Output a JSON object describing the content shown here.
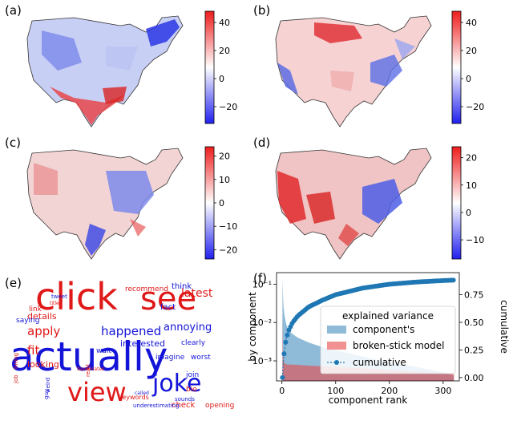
{
  "panels": {
    "a": {
      "label": "(a)",
      "colorbar_ticks": [
        "40",
        "20",
        "0",
        "−20"
      ]
    },
    "b": {
      "label": "(b)",
      "colorbar_ticks": [
        "40",
        "20",
        "0",
        "−20"
      ]
    },
    "c": {
      "label": "(c)",
      "colorbar_ticks": [
        "20",
        "10",
        "0",
        "−10",
        "−20"
      ]
    },
    "d": {
      "label": "(d)",
      "colorbar_ticks": [
        "20",
        "10",
        "0",
        "−10"
      ]
    },
    "e": {
      "label": "(e)"
    },
    "f": {
      "label": "(f)"
    }
  },
  "colors": {
    "pos": "#e8272a",
    "neg": "#2424e0",
    "blue_word": "#1414d8",
    "red_word": "#e01818",
    "series": "#1f77b4",
    "broken": "#e8474a"
  },
  "wordcloud": {
    "words": [
      {
        "text": "click",
        "color": "red",
        "size": 46
      },
      {
        "text": "see",
        "color": "red",
        "size": 40
      },
      {
        "text": "actually",
        "color": "blue",
        "size": 50
      },
      {
        "text": "view",
        "color": "red",
        "size": 32
      },
      {
        "text": "joke",
        "color": "blue",
        "size": 30
      },
      {
        "text": "happened",
        "color": "blue",
        "size": 15
      },
      {
        "text": "apply",
        "color": "red",
        "size": 15
      },
      {
        "text": "annoying",
        "color": "blue",
        "size": 13
      },
      {
        "text": "latest",
        "color": "red",
        "size": 14
      },
      {
        "text": "details",
        "color": "red",
        "size": 11
      },
      {
        "text": "fit",
        "color": "red",
        "size": 15
      },
      {
        "text": "looking",
        "color": "red",
        "size": 11
      },
      {
        "text": "interested",
        "color": "blue",
        "size": 11
      },
      {
        "text": "check",
        "color": "red",
        "size": 10
      },
      {
        "text": "opening",
        "color": "red",
        "size": 9
      },
      {
        "text": "recommend",
        "color": "red",
        "size": 9
      },
      {
        "text": "think",
        "color": "blue",
        "size": 10
      },
      {
        "text": "fact",
        "color": "blue",
        "size": 10
      },
      {
        "text": "join",
        "color": "blue",
        "size": 9
      },
      {
        "text": "bio",
        "color": "red",
        "size": 9
      },
      {
        "text": "saying",
        "color": "blue",
        "size": 9
      },
      {
        "text": "link",
        "color": "red",
        "size": 9
      },
      {
        "text": "wait",
        "color": "blue",
        "size": 9
      },
      {
        "text": "imagine",
        "color": "blue",
        "size": 9
      },
      {
        "text": "clearly",
        "color": "blue",
        "size": 9
      },
      {
        "text": "worst",
        "color": "blue",
        "size": 9
      },
      {
        "text": "keywords",
        "color": "red",
        "size": 8
      },
      {
        "text": "sounds",
        "color": "blue",
        "size": 7
      },
      {
        "text": "underestimating",
        "color": "blue",
        "size": 7
      },
      {
        "text": "called",
        "color": "blue",
        "size": 6
      },
      {
        "text": "hiring",
        "color": "red",
        "size": 7
      },
      {
        "text": "job",
        "color": "red",
        "size": 7
      },
      {
        "text": "tweet",
        "color": "blue",
        "size": 7
      },
      {
        "text": "titles",
        "color": "red",
        "size": 6
      },
      {
        "text": "read",
        "color": "red",
        "size": 7
      },
      {
        "text": "guy",
        "color": "blue",
        "size": 7
      },
      {
        "text": "weird",
        "color": "blue",
        "size": 7
      },
      {
        "text": "teammates",
        "color": "red",
        "size": 6
      }
    ]
  },
  "chart_data": {
    "type": "area",
    "xlabel": "component rank",
    "ylabel_left": "by component",
    "ylabel_right": "cumulative",
    "xlim": [
      -10,
      330
    ],
    "xticks": [
      "0",
      "100",
      "200",
      "300"
    ],
    "ylim_left": [
      0.0003,
      0.2
    ],
    "yscale_left": "log",
    "yticks_left": [
      "10⁻³",
      "10⁻²",
      "10⁻¹"
    ],
    "ylim_right": [
      -0.03,
      0.95
    ],
    "yticks_right": [
      "0.00",
      "0.25",
      "0.50",
      "0.75"
    ],
    "legend": {
      "title": "explained variance",
      "placement": "center-right",
      "entries": [
        "component's",
        "broken-stick model",
        "cumulative"
      ]
    },
    "series": [
      {
        "name": "component's",
        "kind": "area",
        "x": [
          1,
          2,
          3,
          5,
          8,
          12,
          20,
          30,
          50,
          75,
          100,
          150,
          200,
          250,
          300,
          320
        ],
        "values": [
          0.14,
          0.05,
          0.025,
          0.015,
          0.009,
          0.0065,
          0.005,
          0.004,
          0.003,
          0.0023,
          0.0019,
          0.0013,
          0.0009,
          0.0007,
          0.0005,
          0.00042
        ]
      },
      {
        "name": "broken-stick model",
        "kind": "area",
        "x": [
          1,
          2,
          5,
          10,
          20,
          50,
          100,
          150,
          200,
          250,
          300,
          320
        ],
        "values": [
          0.02,
          0.0012,
          0.00085,
          0.0008,
          0.0008,
          0.00075,
          0.0007,
          0.00064,
          0.00058,
          0.00052,
          0.00047,
          0.00045
        ]
      },
      {
        "name": "cumulative",
        "kind": "line-markers",
        "x": [
          1,
          2,
          3,
          5,
          8,
          12,
          20,
          30,
          50,
          75,
          100,
          150,
          200,
          250,
          300,
          320
        ],
        "values": [
          0.0,
          0.1,
          0.17,
          0.26,
          0.35,
          0.42,
          0.5,
          0.56,
          0.64,
          0.7,
          0.75,
          0.81,
          0.845,
          0.865,
          0.878,
          0.882
        ]
      }
    ]
  }
}
